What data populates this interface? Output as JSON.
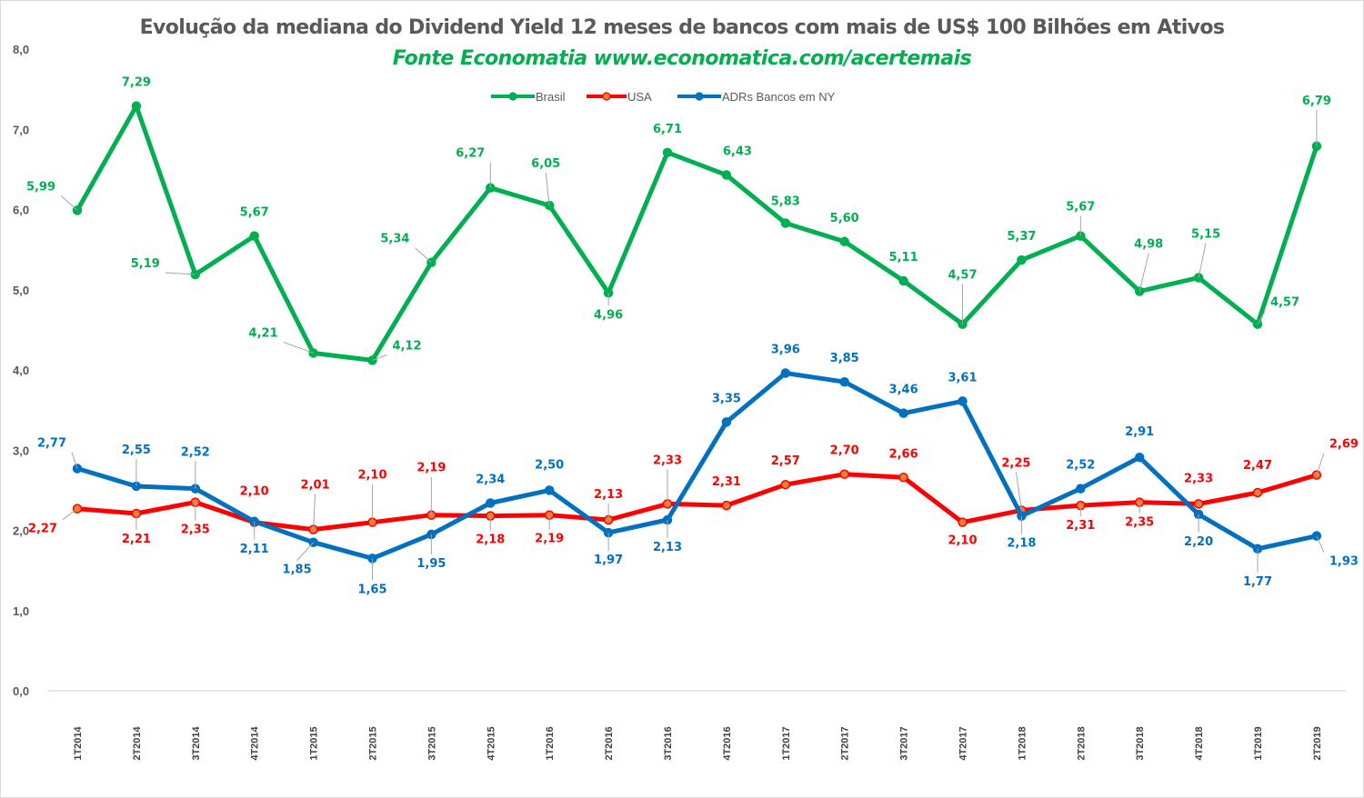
{
  "chart_data": {
    "type": "line",
    "title": "Evolução da mediana do  Dividend Yield 12 meses de bancos com mais de US$ 100 Bilhões em Ativos",
    "subtitle": "Fonte Economatia www.economatica.com/acertemais",
    "xlabel": "",
    "ylabel": "",
    "ylim": [
      0,
      8
    ],
    "yticks": [
      "0,0",
      "1,0",
      "2,0",
      "3,0",
      "4,0",
      "5,0",
      "6,0",
      "7,0",
      "8,0"
    ],
    "ytick_values": [
      0,
      1,
      2,
      3,
      4,
      5,
      6,
      7,
      8
    ],
    "grid": false,
    "legend_position": "top-center",
    "categories": [
      "1T2014",
      "2T2014",
      "3T2014",
      "4T2014",
      "1T2015",
      "2T2015",
      "3T2015",
      "4T2015",
      "1T2016",
      "2T2016",
      "3T2016",
      "4T2016",
      "1T2017",
      "2T2017",
      "3T2017",
      "4T2017",
      "1T2018",
      "2T2018",
      "3T2018",
      "4T2018",
      "1T2019",
      "2T2019"
    ],
    "series": [
      {
        "name": "Brasil",
        "color": "#00b050",
        "marker_color": "#00b050",
        "label_color": "#00b050",
        "values": [
          5.99,
          7.29,
          5.19,
          5.67,
          4.21,
          4.12,
          5.34,
          6.27,
          6.05,
          4.96,
          6.71,
          6.43,
          5.83,
          5.6,
          5.11,
          4.57,
          5.37,
          5.67,
          4.98,
          5.15,
          4.57,
          6.79
        ],
        "labels": [
          "5,99",
          "7,29",
          "5,19",
          "5,67",
          "4,21",
          "4,12",
          "5,34",
          "6,27",
          "6,05",
          "4,96",
          "6,71",
          "6,43",
          "5,83",
          "5,60",
          "5,11",
          "4,57",
          "5,37",
          "5,67",
          "4,98",
          "5,15",
          "4,57",
          "6,79"
        ]
      },
      {
        "name": "USA",
        "color": "#ff0000",
        "marker_color": "#ed7d31",
        "label_color": "#ff0000",
        "values": [
          2.27,
          2.21,
          2.35,
          2.1,
          2.01,
          2.1,
          2.19,
          2.18,
          2.19,
          2.13,
          2.33,
          2.31,
          2.57,
          2.7,
          2.66,
          2.1,
          2.25,
          2.31,
          2.35,
          2.33,
          2.47,
          2.69
        ],
        "labels": [
          "2,27",
          "2,21",
          "2,35",
          "2,10",
          "2,01",
          "2,10",
          "2,19",
          "2,18",
          "2,19",
          "2,13",
          "2,33",
          "2,31",
          "2,57",
          "2,70",
          "2,66",
          "2,10",
          "2,25",
          "2,31",
          "2,35",
          "2,33",
          "2,47",
          "2,69"
        ]
      },
      {
        "name": "ADRs Bancos em NY",
        "color": "#0070c0",
        "marker_color": "#0070c0",
        "label_color": "#0070c0",
        "values": [
          2.77,
          2.55,
          2.52,
          2.11,
          1.85,
          1.65,
          1.95,
          2.34,
          2.5,
          1.97,
          2.13,
          3.35,
          3.96,
          3.85,
          3.46,
          3.61,
          2.18,
          2.52,
          2.91,
          2.2,
          1.77,
          1.93
        ],
        "labels": [
          "2,77",
          "2,55",
          "2,52",
          "2,11",
          "1,85",
          "1,65",
          "1,95",
          "2,34",
          "2,50",
          "1,97",
          "2,13",
          "3,35",
          "3,96",
          "3,85",
          "3,46",
          "3,61",
          "2,18",
          "2,52",
          "2,91",
          "2,20",
          "1,77",
          "1,93"
        ]
      }
    ]
  }
}
